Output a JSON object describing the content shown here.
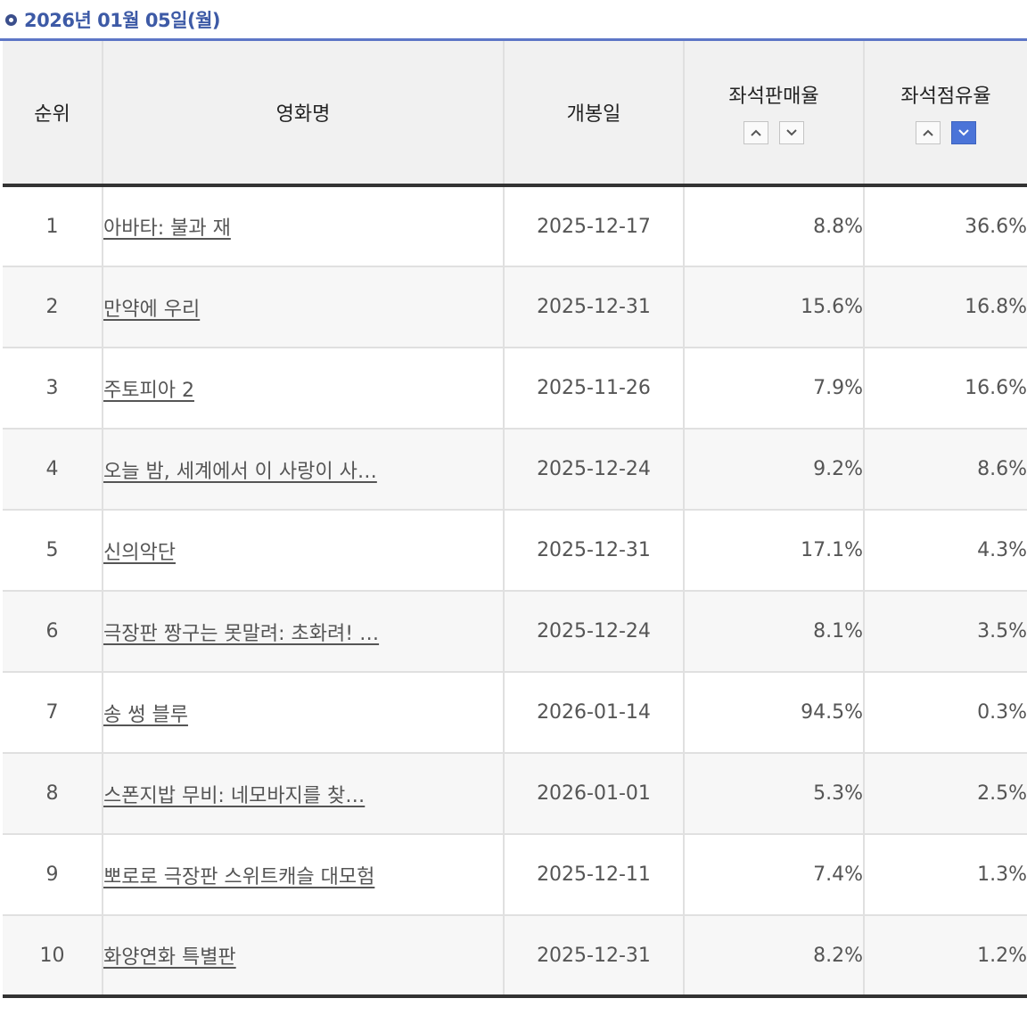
{
  "date_title": "2026년 01월 05일(월)",
  "columns": {
    "rank": "순위",
    "title": "영화명",
    "open_date": "개봉일",
    "sales_rate": "좌석판매율",
    "occupancy_rate": "좌석점유율"
  },
  "sort": {
    "active_column": "occupancy_rate",
    "active_direction": "desc"
  },
  "rows": [
    {
      "rank": "1",
      "title": "아바타: 불과 재",
      "open_date": "2025-12-17",
      "sales_rate": "8.8%",
      "occupancy_rate": "36.6%"
    },
    {
      "rank": "2",
      "title": "만약에 우리",
      "open_date": "2025-12-31",
      "sales_rate": "15.6%",
      "occupancy_rate": "16.8%"
    },
    {
      "rank": "3",
      "title": "주토피아 2",
      "open_date": "2025-11-26",
      "sales_rate": "7.9%",
      "occupancy_rate": "16.6%"
    },
    {
      "rank": "4",
      "title": "오늘 밤, 세계에서 이 사랑이 사…",
      "open_date": "2025-12-24",
      "sales_rate": "9.2%",
      "occupancy_rate": "8.6%"
    },
    {
      "rank": "5",
      "title": "신의악단",
      "open_date": "2025-12-31",
      "sales_rate": "17.1%",
      "occupancy_rate": "4.3%"
    },
    {
      "rank": "6",
      "title": "극장판 짱구는 못말려: 초화려! …",
      "open_date": "2025-12-24",
      "sales_rate": "8.1%",
      "occupancy_rate": "3.5%"
    },
    {
      "rank": "7",
      "title": "송 썽 블루",
      "open_date": "2026-01-14",
      "sales_rate": "94.5%",
      "occupancy_rate": "0.3%"
    },
    {
      "rank": "8",
      "title": "스폰지밥 무비: 네모바지를 찾…",
      "open_date": "2026-01-01",
      "sales_rate": "5.3%",
      "occupancy_rate": "2.5%"
    },
    {
      "rank": "9",
      "title": "뽀로로 극장판 스위트캐슬 대모험",
      "open_date": "2025-12-11",
      "sales_rate": "7.4%",
      "occupancy_rate": "1.3%"
    },
    {
      "rank": "10",
      "title": "화양연화 특별판",
      "open_date": "2025-12-31",
      "sales_rate": "8.2%",
      "occupancy_rate": "1.2%"
    }
  ]
}
